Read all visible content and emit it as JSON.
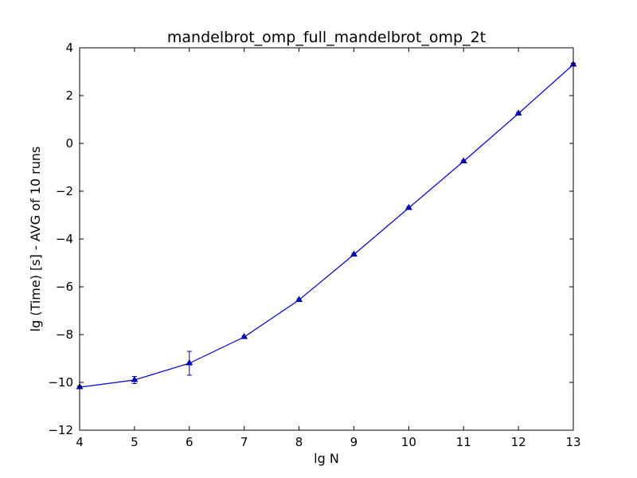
{
  "chart_data": {
    "type": "line",
    "title": "mandelbrot_omp_full_mandelbrot_omp_2t",
    "xlabel": "lg N",
    "ylabel": "lg (Time) [s] - AVG of 10 runs",
    "xlim": [
      4,
      13
    ],
    "ylim": [
      -12,
      4
    ],
    "xticks": [
      "4",
      "5",
      "6",
      "7",
      "8",
      "9",
      "10",
      "11",
      "12",
      "13"
    ],
    "yticks": [
      "−12",
      "−10",
      "−8",
      "−6",
      "−4",
      "−2",
      "0",
      "2",
      "4"
    ],
    "grid": false,
    "legend": "none",
    "marker": "triangle",
    "series": [
      {
        "color": "#0000cc",
        "x": [
          4,
          5,
          6,
          7,
          8,
          9,
          10,
          11,
          12,
          13
        ],
        "y": [
          -10.2,
          -9.9,
          -9.2,
          -8.1,
          -6.55,
          -4.65,
          -2.7,
          -0.75,
          1.25,
          3.3
        ],
        "err": [
          0.05,
          0.15,
          0.5,
          0.05,
          0.05,
          0.05,
          0.05,
          0.05,
          0.05,
          0.05
        ]
      }
    ]
  }
}
